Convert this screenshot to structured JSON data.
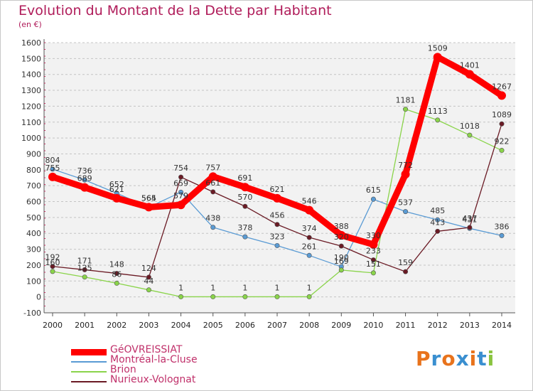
{
  "header": {
    "title": "Evolution du Montant de la Dette par Habitant",
    "subtitle": "(en €)"
  },
  "logo": {
    "text": "Proxiti",
    "colors": [
      "#e8731c",
      "#3a8fd0",
      "#e8731c",
      "#3a8fd0",
      "#e8731c",
      "#3a8fd0",
      "#8ac43f"
    ]
  },
  "chart_data": {
    "type": "line",
    "title": "Evolution du Montant de la Dette par Habitant",
    "subtitle": "(en €)",
    "x": [
      "2000",
      "2001",
      "2002",
      "2003",
      "2004",
      "2005",
      "2006",
      "2007",
      "2008",
      "2009",
      "2010",
      "2011",
      "2012",
      "2013",
      "2014"
    ],
    "ylim": [
      -100,
      1600
    ],
    "yticks": [
      -100,
      0,
      100,
      200,
      300,
      400,
      500,
      600,
      700,
      800,
      900,
      1000,
      1100,
      1200,
      1300,
      1400,
      1500,
      1600
    ],
    "grid": "horizontal-dashed",
    "legend_position": "bottom-left",
    "series": [
      {
        "name": "GéOVREISSIAT",
        "color": "#ff0000",
        "values": [
          755,
          689,
          621,
          565,
          579,
          757,
          691,
          621,
          546,
          388,
          330,
          772,
          1509,
          1401,
          1267
        ]
      },
      {
        "name": "Montréal-la-Cluse",
        "color": "#5a9bd4",
        "values": [
          804,
          736,
          652,
          564,
          659,
          438,
          378,
          323,
          261,
          190,
          615,
          537,
          485,
          431,
          386
        ]
      },
      {
        "name": "Brion",
        "color": "#8ad44a",
        "values": [
          160,
          125,
          86,
          44,
          1,
          1,
          1,
          1,
          1,
          169,
          151,
          1181,
          1113,
          1018,
          922
        ]
      },
      {
        "name": "Nurieux-Volognat",
        "color": "#6a1a24",
        "values": [
          192,
          171,
          148,
          124,
          754,
          661,
          570,
          456,
          374,
          320,
          233,
          159,
          413,
          437,
          1089
        ]
      }
    ]
  }
}
